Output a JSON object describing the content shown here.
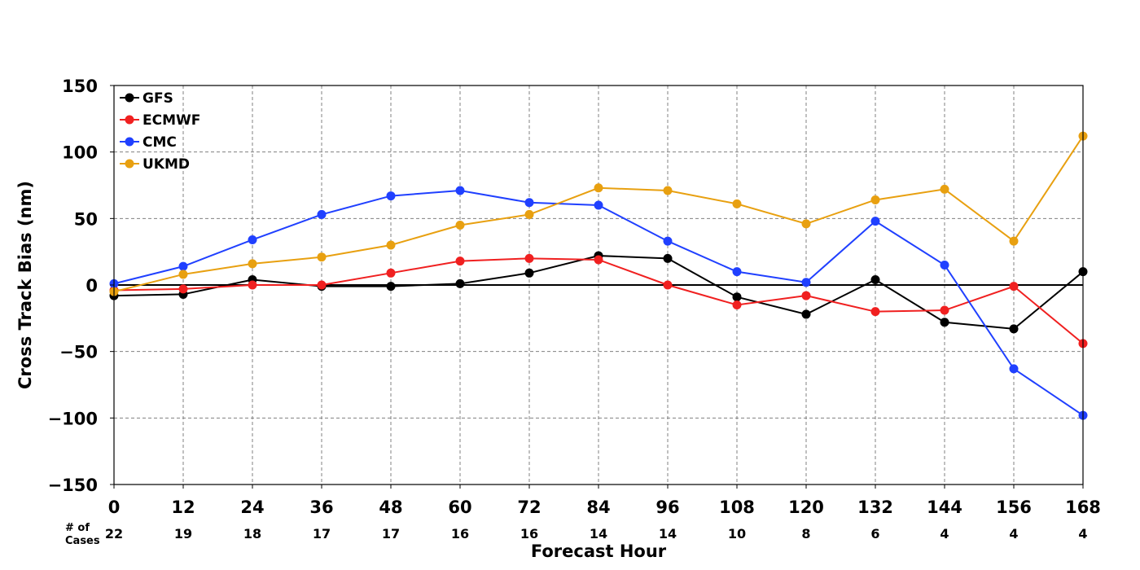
{
  "chart_data": {
    "type": "line",
    "title": "",
    "xlabel": "Forecast Hour",
    "ylabel": "Cross Track Bias (nm)",
    "x": [
      0,
      12,
      24,
      36,
      48,
      60,
      72,
      84,
      96,
      108,
      120,
      132,
      144,
      156,
      168
    ],
    "xlim": [
      0,
      168
    ],
    "ylim": [
      -150,
      150
    ],
    "yticks": [
      -150,
      -100,
      -50,
      0,
      50,
      100,
      150
    ],
    "y_tick_labels": [
      "−150",
      "−100",
      "−50",
      "0",
      "50",
      "100",
      "150"
    ],
    "grid": true,
    "legend_position": "top-left",
    "cases_header_line1": "# of",
    "cases_header_line2": "Cases",
    "cases": [
      22,
      19,
      18,
      17,
      17,
      16,
      16,
      14,
      14,
      10,
      8,
      6,
      4,
      4,
      4
    ],
    "series": [
      {
        "name": "GFS",
        "color": "#000000",
        "values": [
          -8,
          -7,
          4,
          -1,
          -1,
          1,
          9,
          22,
          20,
          -9,
          -22,
          4,
          -28,
          -33,
          10
        ]
      },
      {
        "name": "ECMWF",
        "color": "#f02020",
        "values": [
          -4,
          -3,
          0,
          0,
          9,
          18,
          20,
          19,
          0,
          -15,
          -8,
          -20,
          -19,
          -1,
          -44
        ]
      },
      {
        "name": "CMC",
        "color": "#2040ff",
        "values": [
          1,
          14,
          34,
          53,
          67,
          71,
          62,
          60,
          33,
          10,
          2,
          48,
          15,
          -63,
          -98
        ]
      },
      {
        "name": "UKMD",
        "color": "#e8a010",
        "values": [
          -5,
          8,
          16,
          21,
          30,
          45,
          53,
          73,
          71,
          61,
          46,
          64,
          72,
          33,
          112
        ]
      }
    ]
  }
}
